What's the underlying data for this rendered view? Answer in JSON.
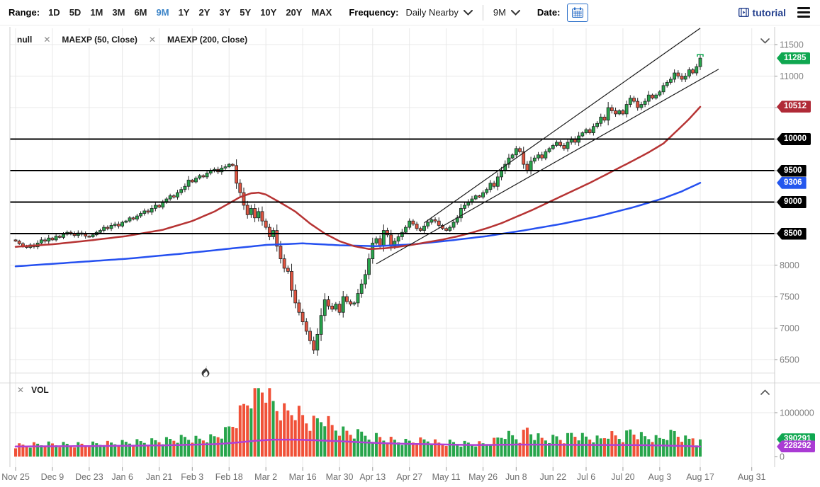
{
  "toolbar": {
    "range_label": "Range:",
    "range_options": [
      "1D",
      "5D",
      "1M",
      "3M",
      "6M",
      "9M",
      "1Y",
      "2Y",
      "3Y",
      "5Y",
      "10Y",
      "20Y",
      "MAX"
    ],
    "range_selected": "9M",
    "frequency_label": "Frequency:",
    "frequency_value": "Daily Nearby",
    "period_value": "9M",
    "date_label": "Date:",
    "tutorial_label": "tutorial"
  },
  "icons": {
    "close": "✕"
  },
  "panels": {
    "price": {
      "indicators": [
        {
          "label": "null",
          "closable": false
        },
        {
          "label": "MAEXP (50, Close)",
          "closable": true
        },
        {
          "label": "MAEXP (200, Close)",
          "closable": true
        }
      ]
    },
    "volume": {
      "label": "VOL",
      "closable": true
    }
  },
  "price_axis_badges": [
    {
      "text": "11285",
      "price": 11285,
      "color_key": "badge_green",
      "name": "last-price-badge",
      "interactable": false
    },
    {
      "text": "10512",
      "price": 10512,
      "color_key": "badge_crimson",
      "name": "maexp50-value-badge",
      "interactable": false
    },
    {
      "text": "10000",
      "price": 10000,
      "color_key": "badge_black",
      "name": "hline-badge-10000",
      "interactable": true
    },
    {
      "text": "9500",
      "price": 9500,
      "color_key": "badge_black",
      "name": "hline-badge-9500",
      "interactable": true
    },
    {
      "text": "9306",
      "price": 9306,
      "color_key": "badge_blue",
      "name": "maexp200-value-badge",
      "interactable": false
    },
    {
      "text": "9000",
      "price": 9000,
      "color_key": "badge_black",
      "name": "hline-badge-9000",
      "interactable": true
    },
    {
      "text": "8500",
      "price": 8500,
      "color_key": "badge_black",
      "name": "hline-badge-8500",
      "interactable": true
    }
  ],
  "volume_axis_badges": [
    {
      "text": "390291",
      "thousands": 390.291,
      "color_key": "badge_green",
      "name": "last-volume-badge",
      "interactable": false
    },
    {
      "text": "228292",
      "thousands": 228.292,
      "color_key": "badge_purple",
      "name": "volume-ma-badge",
      "interactable": false
    }
  ],
  "colors": {
    "accent_blue": "#3d85c8",
    "link_navy": "#24408e",
    "candle_up": "#27a54b",
    "candle_down": "#e25440",
    "candle_stroke": "#222222",
    "vol_up": "#27a54b",
    "vol_down": "#f05138",
    "ema50": "#b63333",
    "ema200": "#2550f0",
    "vol_ma": "#b03fd6",
    "badge_green": "#0fa750",
    "badge_crimson": "#b02a37",
    "badge_blue": "#2457ee",
    "badge_black": "#000000",
    "badge_purple": "#aa3bd4",
    "grid": "#e8e8e8",
    "border": "#cccccc",
    "axis_text": "#808080",
    "date_text": "#6f6f6f",
    "hline": "#000000",
    "trendline": "#1a1a1a",
    "marker_green": "#0fa750"
  },
  "chart_data": {
    "type": "candlestick",
    "panels": [
      "price",
      "volume"
    ],
    "x_axis": {
      "tick_labels": [
        "Nov 25",
        "Dec 9",
        "Dec 23",
        "Jan 6",
        "Jan 21",
        "Feb 3",
        "Feb 18",
        "Mar 2",
        "Mar 16",
        "Mar 30",
        "Apr 13",
        "Apr 27",
        "May 11",
        "May 26",
        "Jun 8",
        "Jun 22",
        "Jul 6",
        "Jul 20",
        "Aug 3",
        "Aug 17",
        "Aug 31"
      ],
      "tick_day_index": [
        0,
        10,
        20,
        29,
        39,
        48,
        58,
        68,
        78,
        88,
        97,
        107,
        117,
        127,
        136,
        146,
        155,
        165,
        175,
        186,
        200
      ]
    },
    "y_axis": {
      "min": 6500,
      "max": 11500,
      "step": 500,
      "visible_plain_labels": [
        11500,
        11000,
        8000,
        7500,
        7000,
        6500
      ]
    },
    "last_price": 11285,
    "maexp50_last": 10512,
    "maexp200_last": 9306,
    "horizontal_lines": [
      10000,
      9500,
      9000,
      8500
    ],
    "trendlines": [
      {
        "from_day": 111,
        "from_price": 8670,
        "to_day": 186,
        "to_price": 11760
      },
      {
        "from_day": 98,
        "from_price": 8020,
        "to_day": 191,
        "to_price": 11110
      }
    ],
    "candles": {
      "first_open": 8400,
      "closes": [
        8380,
        8340,
        8300,
        8280,
        8320,
        8290,
        8350,
        8400,
        8380,
        8430,
        8400,
        8460,
        8440,
        8490,
        8520,
        8500,
        8470,
        8510,
        8490,
        8460,
        8450,
        8480,
        8520,
        8550,
        8600,
        8580,
        8630,
        8650,
        8620,
        8680,
        8700,
        8750,
        8730,
        8780,
        8820,
        8860,
        8840,
        8900,
        8950,
        8920,
        9000,
        9050,
        9100,
        9080,
        9150,
        9200,
        9250,
        9350,
        9320,
        9380,
        9420,
        9400,
        9460,
        9500,
        9520,
        9480,
        9540,
        9560,
        9600,
        9580,
        9300,
        9150,
        8950,
        8800,
        8900,
        8750,
        8850,
        8700,
        8600,
        8450,
        8550,
        8300,
        8100,
        7950,
        7900,
        7600,
        7400,
        7250,
        7100,
        6950,
        6800,
        6650,
        6900,
        7200,
        7450,
        7350,
        7300,
        7380,
        7250,
        7500,
        7420,
        7380,
        7400,
        7550,
        7700,
        7850,
        8100,
        8350,
        8420,
        8300,
        8550,
        8480,
        8300,
        8380,
        8450,
        8520,
        8600,
        8700,
        8650,
        8580,
        8550,
        8620,
        8680,
        8720,
        8700,
        8630,
        8580,
        8550,
        8600,
        8680,
        8750,
        8900,
        8950,
        9000,
        9050,
        9100,
        9080,
        9150,
        9200,
        9300,
        9250,
        9400,
        9500,
        9600,
        9700,
        9750,
        9850,
        9800,
        9600,
        9500,
        9650,
        9700,
        9750,
        9700,
        9800,
        9850,
        9900,
        9950,
        9900,
        9850,
        9950,
        10000,
        9950,
        10050,
        10100,
        10150,
        10100,
        10200,
        10250,
        10350,
        10300,
        10500,
        10450,
        10400,
        10450,
        10400,
        10550,
        10650,
        10600,
        10500,
        10550,
        10600,
        10700,
        10650,
        10700,
        10750,
        10850,
        10900,
        10950,
        11050,
        11000,
        10950,
        11000,
        11100,
        11050,
        11150,
        11285
      ]
    },
    "ema50_anchors": [
      [
        0,
        8290
      ],
      [
        10,
        8330
      ],
      [
        20,
        8390
      ],
      [
        30,
        8460
      ],
      [
        40,
        8560
      ],
      [
        48,
        8700
      ],
      [
        54,
        8850
      ],
      [
        58,
        8980
      ],
      [
        61,
        9080
      ],
      [
        64,
        9140
      ],
      [
        66,
        9150
      ],
      [
        68,
        9120
      ],
      [
        72,
        8990
      ],
      [
        76,
        8850
      ],
      [
        80,
        8660
      ],
      [
        84,
        8500
      ],
      [
        88,
        8380
      ],
      [
        92,
        8300
      ],
      [
        96,
        8255
      ],
      [
        100,
        8265
      ],
      [
        104,
        8290
      ],
      [
        108,
        8325
      ],
      [
        112,
        8365
      ],
      [
        116,
        8405
      ],
      [
        120,
        8455
      ],
      [
        124,
        8515
      ],
      [
        128,
        8585
      ],
      [
        132,
        8665
      ],
      [
        136,
        8765
      ],
      [
        140,
        8865
      ],
      [
        144,
        8975
      ],
      [
        148,
        9085
      ],
      [
        152,
        9195
      ],
      [
        156,
        9305
      ],
      [
        160,
        9425
      ],
      [
        164,
        9545
      ],
      [
        168,
        9665
      ],
      [
        172,
        9790
      ],
      [
        176,
        9930
      ],
      [
        180,
        10150
      ],
      [
        183,
        10320
      ],
      [
        186,
        10512
      ]
    ],
    "ema200_anchors": [
      [
        0,
        7980
      ],
      [
        15,
        8040
      ],
      [
        30,
        8100
      ],
      [
        45,
        8180
      ],
      [
        58,
        8260
      ],
      [
        68,
        8320
      ],
      [
        78,
        8345
      ],
      [
        88,
        8315
      ],
      [
        98,
        8300
      ],
      [
        108,
        8330
      ],
      [
        118,
        8390
      ],
      [
        128,
        8460
      ],
      [
        138,
        8550
      ],
      [
        148,
        8650
      ],
      [
        158,
        8770
      ],
      [
        168,
        8920
      ],
      [
        176,
        9060
      ],
      [
        181,
        9170
      ],
      [
        186,
        9306
      ]
    ],
    "volume": {
      "axis_max": 1000000,
      "axis_labels": [
        "1000000",
        "0"
      ],
      "last": 390291,
      "ma_last": 228292,
      "anchors": [
        [
          0,
          260
        ],
        [
          8,
          300
        ],
        [
          16,
          280
        ],
        [
          24,
          300
        ],
        [
          32,
          330
        ],
        [
          40,
          360
        ],
        [
          46,
          420
        ],
        [
          50,
          380
        ],
        [
          54,
          430
        ],
        [
          57,
          550
        ],
        [
          60,
          800
        ],
        [
          62,
          1100
        ],
        [
          64,
          1350
        ],
        [
          66,
          1550
        ],
        [
          68,
          1500
        ],
        [
          70,
          1150
        ],
        [
          72,
          1000
        ],
        [
          74,
          950
        ],
        [
          76,
          1000
        ],
        [
          78,
          850
        ],
        [
          80,
          700
        ],
        [
          82,
          780
        ],
        [
          84,
          820
        ],
        [
          86,
          640
        ],
        [
          88,
          560
        ],
        [
          90,
          520
        ],
        [
          92,
          480
        ],
        [
          94,
          500
        ],
        [
          96,
          450
        ],
        [
          98,
          470
        ],
        [
          100,
          420
        ],
        [
          103,
          380
        ],
        [
          106,
          350
        ],
        [
          109,
          370
        ],
        [
          112,
          390
        ],
        [
          115,
          310
        ],
        [
          118,
          330
        ],
        [
          121,
          300
        ],
        [
          124,
          310
        ],
        [
          127,
          290
        ],
        [
          130,
          360
        ],
        [
          133,
          520
        ],
        [
          135,
          460
        ],
        [
          137,
          400
        ],
        [
          139,
          620
        ],
        [
          141,
          480
        ],
        [
          143,
          400
        ],
        [
          145,
          390
        ],
        [
          147,
          430
        ],
        [
          149,
          380
        ],
        [
          151,
          500
        ],
        [
          153,
          460
        ],
        [
          155,
          420
        ],
        [
          157,
          400
        ],
        [
          159,
          380
        ],
        [
          161,
          500
        ],
        [
          163,
          440
        ],
        [
          165,
          400
        ],
        [
          167,
          560
        ],
        [
          169,
          480
        ],
        [
          171,
          420
        ],
        [
          173,
          400
        ],
        [
          175,
          380
        ],
        [
          177,
          450
        ],
        [
          179,
          520
        ],
        [
          181,
          400
        ],
        [
          183,
          360
        ],
        [
          184,
          420
        ],
        [
          185,
          300
        ],
        [
          186,
          390
        ]
      ],
      "ma_anchors": [
        [
          0,
          230
        ],
        [
          20,
          238
        ],
        [
          40,
          255
        ],
        [
          55,
          285
        ],
        [
          60,
          320
        ],
        [
          65,
          360
        ],
        [
          70,
          385
        ],
        [
          76,
          385
        ],
        [
          82,
          370
        ],
        [
          88,
          350
        ],
        [
          94,
          325
        ],
        [
          100,
          305
        ],
        [
          106,
          290
        ],
        [
          112,
          282
        ],
        [
          118,
          272
        ],
        [
          124,
          264
        ],
        [
          130,
          266
        ],
        [
          136,
          274
        ],
        [
          142,
          272
        ],
        [
          148,
          268
        ],
        [
          154,
          266
        ],
        [
          160,
          264
        ],
        [
          166,
          264
        ],
        [
          172,
          258
        ],
        [
          178,
          248
        ],
        [
          182,
          240
        ],
        [
          186,
          228
        ]
      ]
    }
  }
}
